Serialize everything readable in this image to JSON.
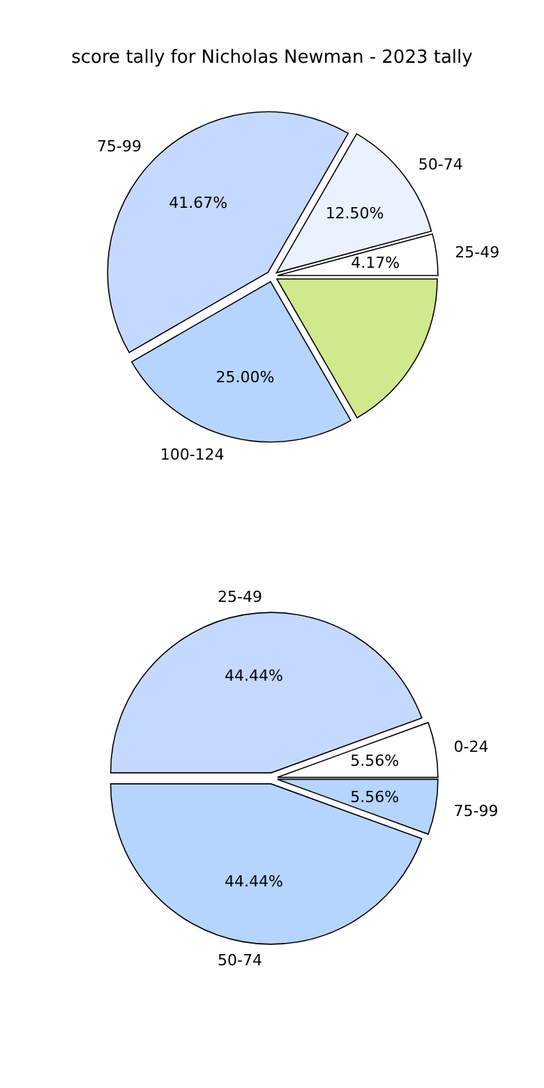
{
  "chart_data": [
    {
      "type": "pie",
      "title": "score tally for Nicholas Newman - 2023 tally",
      "categories": [
        "25-49",
        "50-74",
        "75-99",
        "100-124",
        null
      ],
      "values": [
        4.17,
        12.5,
        41.67,
        25,
        16.66
      ],
      "colors": [
        "#ffffff",
        "#eaf1ff",
        "#c5d9ff",
        "#b5d5ff",
        "#d0e98c"
      ],
      "value_labels": [
        "4.17%",
        "12.50%",
        "41.67%",
        "25.00%",
        null
      ]
    },
    {
      "type": "pie",
      "categories": [
        "0-24",
        "25-49",
        "50-74",
        "75-99"
      ],
      "values": [
        5.56,
        44.44,
        44.44,
        5.56
      ],
      "colors": [
        "#ffffff",
        "#c5d9ff",
        "#b5d5ff",
        "#b5d5ff"
      ],
      "value_labels": [
        "5.56%",
        "44.44%",
        "44.44%",
        "5.56%"
      ]
    }
  ]
}
